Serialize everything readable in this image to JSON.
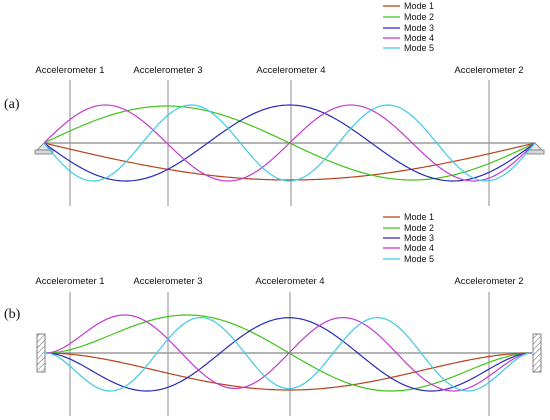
{
  "panels": [
    {
      "label": "(a)",
      "support": "pinned",
      "accelerometers": [
        "Accelerometer 1",
        "Accelerometer 3",
        "Accelerometer 4",
        "Accelerometer 2"
      ],
      "legend": [
        {
          "name": "Mode 1",
          "color": "#b5441e"
        },
        {
          "name": "Mode 2",
          "color": "#3ec41a"
        },
        {
          "name": "Mode 3",
          "color": "#2a2ab8"
        },
        {
          "name": "Mode 4",
          "color": "#c23ad0"
        },
        {
          "name": "Mode 5",
          "color": "#3fcbe6"
        }
      ]
    },
    {
      "label": "(b)",
      "support": "fixed",
      "accelerometers": [
        "Accelerometer 1",
        "Accelerometer 3",
        "Accelerometer 4",
        "Accelerometer 2"
      ],
      "legend": [
        {
          "name": "Mode 1",
          "color": "#b5441e"
        },
        {
          "name": "Mode 2",
          "color": "#3ec41a"
        },
        {
          "name": "Mode 3",
          "color": "#2a2ab8"
        },
        {
          "name": "Mode 4",
          "color": "#c23ad0"
        },
        {
          "name": "Mode 5",
          "color": "#3fcbe6"
        }
      ]
    }
  ]
}
